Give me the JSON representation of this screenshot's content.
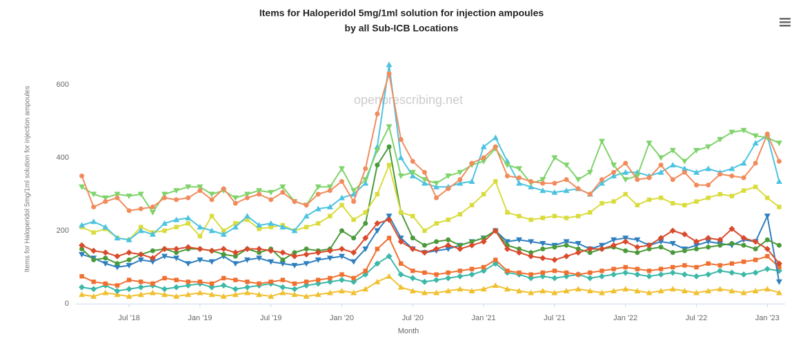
{
  "chart_data": {
    "type": "line",
    "title": "Items for Haloperidol 5mg/1ml solution for injection ampoules",
    "subtitle": "by all Sub-ICB Locations",
    "watermark": "openprescribing.net",
    "x_label": "Month",
    "y_label": "Items for Haloperidol 5mg/1ml solution for injection ampoules",
    "categories": [
      null,
      null,
      null,
      null,
      "Jul '18",
      null,
      null,
      null,
      null,
      null,
      "Jan '19",
      null,
      null,
      null,
      null,
      null,
      "Jul '19",
      null,
      null,
      null,
      null,
      null,
      "Jan '20",
      null,
      null,
      null,
      null,
      null,
      "Jul '20",
      null,
      null,
      null,
      null,
      null,
      "Jan '21",
      null,
      null,
      null,
      null,
      null,
      "Jul '21",
      null,
      null,
      null,
      null,
      null,
      "Jan '22",
      null,
      null,
      null,
      null,
      null,
      "Jul '22",
      null,
      null,
      null,
      null,
      null,
      "Jan '23",
      null
    ],
    "ylim": [
      0,
      700
    ],
    "yticks": [
      0,
      200,
      400,
      600
    ],
    "grid": false,
    "series": [
      {
        "color": "#f28b5c",
        "marker": "circle",
        "values": [
          350,
          265,
          280,
          290,
          255,
          260,
          265,
          290,
          285,
          290,
          310,
          285,
          315,
          275,
          290,
          300,
          285,
          305,
          280,
          270,
          300,
          310,
          335,
          280,
          370,
          520,
          630,
          450,
          390,
          360,
          290,
          315,
          340,
          385,
          400,
          430,
          350,
          345,
          335,
          330,
          330,
          340,
          315,
          300,
          340,
          360,
          385,
          340,
          345,
          380,
          340,
          360,
          325,
          325,
          355,
          350,
          345,
          385,
          465,
          390
        ]
      },
      {
        "color": "#7ed36a",
        "marker": "triangle-down",
        "values": [
          320,
          300,
          290,
          300,
          295,
          300,
          250,
          300,
          310,
          320,
          320,
          300,
          310,
          290,
          300,
          310,
          305,
          320,
          280,
          270,
          320,
          320,
          370,
          310,
          340,
          420,
          485,
          350,
          360,
          340,
          330,
          350,
          360,
          380,
          390,
          425,
          380,
          370,
          330,
          340,
          400,
          380,
          340,
          360,
          445,
          380,
          340,
          350,
          440,
          400,
          420,
          390,
          420,
          430,
          450,
          470,
          475,
          460,
          455,
          440
        ]
      },
      {
        "color": "#4cc3e0",
        "marker": "triangle-up",
        "values": [
          215,
          225,
          210,
          180,
          175,
          200,
          190,
          220,
          230,
          235,
          210,
          200,
          190,
          210,
          240,
          215,
          220,
          210,
          200,
          240,
          260,
          265,
          290,
          300,
          330,
          430,
          655,
          400,
          350,
          330,
          320,
          320,
          330,
          335,
          430,
          455,
          390,
          330,
          320,
          310,
          305,
          310,
          315,
          300,
          330,
          350,
          360,
          360,
          350,
          360,
          380,
          370,
          360,
          370,
          360,
          370,
          385,
          440,
          460,
          335
        ]
      },
      {
        "color": "#d9dc3c",
        "marker": "square",
        "values": [
          210,
          195,
          205,
          180,
          175,
          210,
          195,
          200,
          210,
          220,
          185,
          240,
          200,
          220,
          230,
          205,
          210,
          215,
          200,
          210,
          220,
          240,
          270,
          230,
          250,
          300,
          380,
          250,
          240,
          200,
          220,
          230,
          245,
          270,
          300,
          335,
          250,
          240,
          230,
          235,
          240,
          235,
          240,
          250,
          275,
          280,
          300,
          270,
          285,
          290,
          275,
          270,
          280,
          290,
          300,
          295,
          310,
          320,
          290,
          265
        ]
      },
      {
        "color": "#d94a2a",
        "marker": "diamond",
        "values": [
          160,
          145,
          140,
          130,
          140,
          135,
          125,
          150,
          150,
          155,
          150,
          145,
          150,
          140,
          150,
          150,
          145,
          140,
          130,
          135,
          140,
          145,
          150,
          140,
          180,
          220,
          230,
          170,
          150,
          140,
          150,
          160,
          150,
          160,
          170,
          200,
          150,
          140,
          130,
          125,
          120,
          130,
          140,
          150,
          150,
          160,
          170,
          155,
          160,
          180,
          200,
          190,
          170,
          180,
          175,
          205,
          180,
          170,
          150,
          110
        ]
      },
      {
        "color": "#4a9a3a",
        "marker": "circle",
        "values": [
          150,
          120,
          125,
          110,
          120,
          135,
          145,
          150,
          140,
          150,
          150,
          145,
          135,
          130,
          150,
          140,
          150,
          120,
          140,
          150,
          145,
          150,
          200,
          180,
          220,
          380,
          430,
          250,
          180,
          160,
          170,
          175,
          160,
          170,
          180,
          200,
          160,
          150,
          140,
          150,
          155,
          160,
          150,
          140,
          150,
          155,
          145,
          140,
          150,
          155,
          140,
          145,
          150,
          155,
          160,
          165,
          160,
          150,
          175,
          160
        ]
      },
      {
        "color": "#2e7fbf",
        "marker": "triangle-down",
        "values": [
          135,
          125,
          110,
          100,
          105,
          120,
          115,
          130,
          125,
          110,
          120,
          115,
          130,
          110,
          120,
          125,
          115,
          110,
          105,
          110,
          120,
          125,
          130,
          115,
          150,
          200,
          240,
          180,
          150,
          140,
          145,
          150,
          160,
          170,
          180,
          200,
          170,
          175,
          170,
          165,
          160,
          170,
          165,
          150,
          160,
          175,
          180,
          175,
          160,
          170,
          165,
          150,
          160,
          170,
          165,
          160,
          175,
          170,
          240,
          60
        ]
      },
      {
        "color": "#f07030",
        "marker": "square",
        "values": [
          75,
          60,
          55,
          50,
          65,
          60,
          55,
          70,
          65,
          60,
          60,
          55,
          70,
          65,
          60,
          55,
          60,
          65,
          55,
          60,
          65,
          70,
          80,
          70,
          90,
          150,
          180,
          110,
          90,
          85,
          80,
          85,
          90,
          95,
          100,
          120,
          90,
          85,
          80,
          85,
          90,
          85,
          80,
          85,
          90,
          95,
          100,
          95,
          90,
          95,
          100,
          105,
          100,
          110,
          105,
          110,
          115,
          120,
          130,
          100
        ]
      },
      {
        "color": "#3cb8a8",
        "marker": "diamond",
        "values": [
          45,
          40,
          50,
          35,
          40,
          45,
          50,
          40,
          45,
          50,
          55,
          45,
          50,
          40,
          45,
          50,
          55,
          45,
          40,
          50,
          55,
          60,
          65,
          60,
          80,
          110,
          130,
          80,
          70,
          60,
          65,
          70,
          75,
          80,
          90,
          110,
          85,
          80,
          70,
          75,
          70,
          75,
          80,
          70,
          75,
          80,
          85,
          80,
          75,
          80,
          85,
          80,
          75,
          80,
          90,
          85,
          80,
          85,
          95,
          90
        ]
      },
      {
        "color": "#f0c030",
        "marker": "triangle-up",
        "values": [
          25,
          20,
          30,
          25,
          20,
          25,
          30,
          25,
          20,
          25,
          30,
          25,
          20,
          25,
          30,
          25,
          20,
          30,
          25,
          20,
          25,
          30,
          35,
          30,
          40,
          60,
          75,
          45,
          35,
          30,
          30,
          35,
          40,
          35,
          40,
          50,
          40,
          35,
          30,
          35,
          30,
          35,
          40,
          35,
          30,
          35,
          40,
          35,
          30,
          35,
          40,
          35,
          30,
          35,
          40,
          35,
          30,
          35,
          40,
          30
        ]
      }
    ]
  }
}
